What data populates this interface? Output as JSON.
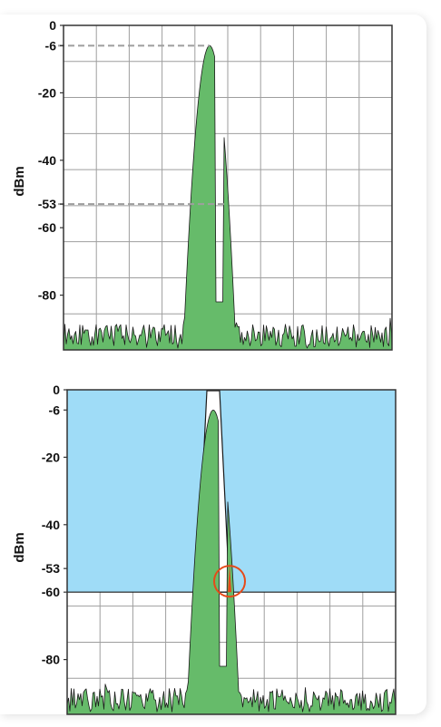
{
  "colors": {
    "spectrum_fill": "#66bb6a",
    "spectrum_stroke": "#1a1a1a",
    "grid": "#9e9e9e",
    "frame": "#333333",
    "mask_fill": "#9fdcf7",
    "mask_stroke": "#1a1a1a",
    "guide_dash": "#9e9e9e",
    "highlight": "#e64a19"
  },
  "chart_data": [
    {
      "type": "area",
      "ylabel": "dBm",
      "xlabel": "",
      "ylim": [
        -97,
        0
      ],
      "y_ticks": [
        "0",
        "-6",
        "-20",
        "-40",
        "-53",
        "-60",
        "-80"
      ],
      "y_tick_values": [
        0,
        -6,
        -20,
        -40,
        -53,
        -60,
        -80
      ],
      "noise_floor_dbm": -92,
      "peaks": [
        {
          "name": "",
          "level_dbm": -6,
          "x_fraction": 0.5
        },
        {
          "name": "",
          "level_dbm": -53,
          "x_fraction": 0.55
        }
      ],
      "reference_lines_dbm": [
        -6,
        -53
      ],
      "grid": true
    },
    {
      "type": "area",
      "ylabel": "dBm",
      "xlabel": "",
      "ylim": [
        -97,
        0
      ],
      "y_ticks": [
        "0",
        "-6",
        "-20",
        "-40",
        "-53",
        "-60",
        "-80"
      ],
      "y_tick_values": [
        0,
        -6,
        -20,
        -40,
        -53,
        -60,
        -80
      ],
      "noise_floor_dbm": -92,
      "peaks": [
        {
          "name": "",
          "level_dbm": -6,
          "x_fraction": 0.5
        },
        {
          "name": "",
          "level_dbm": -53,
          "x_fraction": 0.55
        }
      ],
      "mask": {
        "floor_dbm": -60,
        "top_dbm": 0
      },
      "highlighted_peak_dbm": -53,
      "grid": true
    }
  ]
}
